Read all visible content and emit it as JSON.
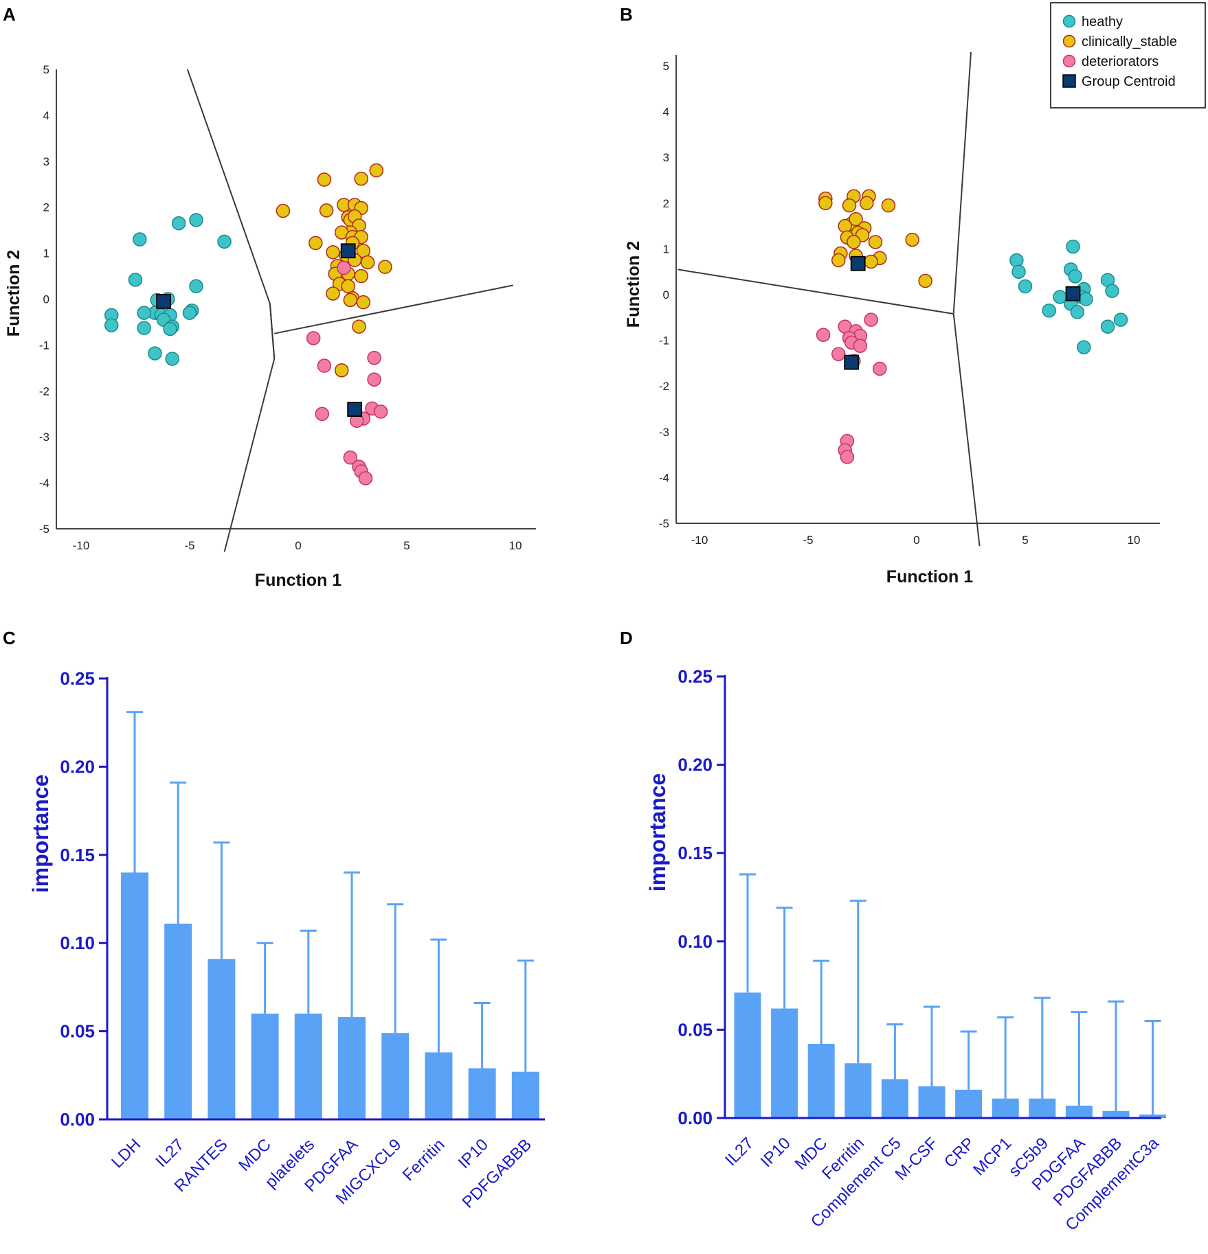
{
  "chart_data": [
    {
      "panel": "A",
      "type": "scatter",
      "xlabel": "Function 1",
      "ylabel": "Function 2",
      "xlim": [
        -11,
        11
      ],
      "ylim": [
        -5.5,
        5.3
      ],
      "xticks": [
        -10,
        -5,
        0,
        5,
        10
      ],
      "yticks": [
        5,
        4,
        3,
        2,
        1,
        0,
        -1,
        -2,
        -3,
        -4,
        -5
      ],
      "grid": false,
      "territory_lines": [
        {
          "points": [
            [
              -5.1,
              5.0
            ],
            [
              -1.3,
              -0.1
            ],
            [
              -1.1,
              -1.3
            ],
            [
              -3.4,
              -5.5
            ]
          ]
        },
        {
          "points": [
            [
              -1.3,
              -0.1
            ],
            [
              -1.1,
              -1.3
            ]
          ]
        },
        {
          "points": [
            [
              -1.1,
              -0.75
            ],
            [
              9.9,
              0.3
            ]
          ]
        }
      ],
      "series": [
        {
          "name": "heathy",
          "color": "#3ec4c8",
          "stroke": "#1a8a8e",
          "points": [
            [
              -5.5,
              1.65
            ],
            [
              -4.7,
              1.72
            ],
            [
              -3.4,
              1.25
            ],
            [
              -7.3,
              1.3
            ],
            [
              -7.5,
              0.42
            ],
            [
              -4.7,
              0.28
            ],
            [
              -6.5,
              -0.02
            ],
            [
              -6.0,
              0.0
            ],
            [
              -6.6,
              -0.3
            ],
            [
              -7.1,
              -0.3
            ],
            [
              -6.3,
              -0.35
            ],
            [
              -5.9,
              -0.35
            ],
            [
              -4.9,
              -0.25
            ],
            [
              -5.0,
              -0.3
            ],
            [
              -8.6,
              -0.35
            ],
            [
              -8.6,
              -0.57
            ],
            [
              -6.2,
              -0.45
            ],
            [
              -5.8,
              -0.6
            ],
            [
              -5.9,
              -0.65
            ],
            [
              -7.1,
              -0.63
            ],
            [
              -6.6,
              -1.18
            ],
            [
              -5.8,
              -1.3
            ]
          ]
        },
        {
          "name": "clinically_stable",
          "color": "#e6c40f",
          "stroke": "#b1261a",
          "points": [
            [
              1.2,
              2.6
            ],
            [
              2.9,
              2.62
            ],
            [
              3.6,
              2.8
            ],
            [
              -0.7,
              1.92
            ],
            [
              1.3,
              1.93
            ],
            [
              2.1,
              2.05
            ],
            [
              2.6,
              2.05
            ],
            [
              2.9,
              1.98
            ],
            [
              2.3,
              1.78
            ],
            [
              2.4,
              1.72
            ],
            [
              2.6,
              1.8
            ],
            [
              2.8,
              1.6
            ],
            [
              2.4,
              1.45
            ],
            [
              2.0,
              1.45
            ],
            [
              2.5,
              1.35
            ],
            [
              2.9,
              1.35
            ],
            [
              0.8,
              1.22
            ],
            [
              2.5,
              1.22
            ],
            [
              3.0,
              1.05
            ],
            [
              1.6,
              1.02
            ],
            [
              2.2,
              0.95
            ],
            [
              2.6,
              0.85
            ],
            [
              3.2,
              0.8
            ],
            [
              4.0,
              0.7
            ],
            [
              1.8,
              0.72
            ],
            [
              2.3,
              0.55
            ],
            [
              1.7,
              0.55
            ],
            [
              2.9,
              0.5
            ],
            [
              1.9,
              0.33
            ],
            [
              2.3,
              0.28
            ],
            [
              1.6,
              0.12
            ],
            [
              2.5,
              0.02
            ],
            [
              2.4,
              -0.02
            ],
            [
              3.0,
              -0.07
            ],
            [
              2.8,
              -0.6
            ],
            [
              2.0,
              -1.55
            ]
          ]
        },
        {
          "name": "deteriorators",
          "color": "#f27ca4",
          "stroke": "#c4326a",
          "points": [
            [
              2.1,
              0.68
            ],
            [
              0.7,
              -0.85
            ],
            [
              3.5,
              -1.28
            ],
            [
              1.2,
              -1.45
            ],
            [
              3.5,
              -1.75
            ],
            [
              1.1,
              -2.5
            ],
            [
              3.4,
              -2.38
            ],
            [
              3.8,
              -2.45
            ],
            [
              3.0,
              -2.6
            ],
            [
              2.7,
              -2.65
            ],
            [
              2.4,
              -3.45
            ],
            [
              2.8,
              -3.65
            ],
            [
              2.9,
              -3.75
            ],
            [
              3.1,
              -3.9
            ]
          ]
        },
        {
          "name": "Group Centroid",
          "color": "#0b3a6e",
          "stroke": "#000000",
          "points": [
            [
              -6.2,
              -0.05
            ],
            [
              2.3,
              1.05
            ],
            [
              2.6,
              -2.4
            ]
          ]
        }
      ]
    },
    {
      "panel": "B",
      "type": "scatter",
      "xlabel": "Function 1",
      "ylabel": "Function 2",
      "xlim": [
        -11,
        11
      ],
      "ylim": [
        -5.5,
        5.5
      ],
      "xticks": [
        -10,
        -5,
        0,
        5,
        10
      ],
      "yticks": [
        5,
        4,
        3,
        2,
        1,
        0,
        -1,
        -2,
        -3,
        -4,
        -5
      ],
      "grid": false,
      "territory_lines": [
        {
          "points": [
            [
              -11.0,
              0.55
            ],
            [
              1.7,
              -0.42
            ]
          ]
        },
        {
          "points": [
            [
              2.5,
              5.3
            ],
            [
              1.7,
              -0.42
            ],
            [
              2.9,
              -5.5
            ]
          ]
        }
      ],
      "legend": {
        "position": "top-right",
        "entries": [
          "heathy",
          "clinically_stable",
          "deteriorators",
          "Group Centroid"
        ]
      },
      "series": [
        {
          "name": "heathy",
          "color": "#3ec4c8",
          "stroke": "#1a8a8e",
          "points": [
            [
              7.2,
              1.05
            ],
            [
              4.6,
              0.75
            ],
            [
              4.7,
              0.5
            ],
            [
              7.1,
              0.55
            ],
            [
              7.3,
              0.4
            ],
            [
              5.0,
              0.18
            ],
            [
              8.8,
              0.32
            ],
            [
              7.7,
              0.12
            ],
            [
              9.0,
              0.08
            ],
            [
              6.6,
              -0.05
            ],
            [
              7.6,
              -0.05
            ],
            [
              7.8,
              -0.1
            ],
            [
              7.1,
              -0.2
            ],
            [
              6.1,
              -0.35
            ],
            [
              7.4,
              -0.38
            ],
            [
              9.4,
              -0.55
            ],
            [
              8.8,
              -0.7
            ],
            [
              7.7,
              -1.15
            ]
          ]
        },
        {
          "name": "clinically_stable",
          "color": "#e6c40f",
          "stroke": "#b1261a",
          "points": [
            [
              -4.2,
              2.1
            ],
            [
              -4.2,
              2.0
            ],
            [
              -2.9,
              2.15
            ],
            [
              -2.2,
              2.15
            ],
            [
              -2.3,
              2.0
            ],
            [
              -3.1,
              1.95
            ],
            [
              -1.3,
              1.95
            ],
            [
              -3.0,
              1.55
            ],
            [
              -2.8,
              1.65
            ],
            [
              -2.4,
              1.45
            ],
            [
              -3.3,
              1.5
            ],
            [
              -2.7,
              1.35
            ],
            [
              -2.5,
              1.3
            ],
            [
              -3.2,
              1.25
            ],
            [
              -1.9,
              1.15
            ],
            [
              -2.9,
              1.15
            ],
            [
              -0.2,
              1.2
            ],
            [
              -3.5,
              0.9
            ],
            [
              -2.8,
              0.85
            ],
            [
              -1.7,
              0.8
            ],
            [
              -3.6,
              0.75
            ],
            [
              -2.1,
              0.72
            ],
            [
              0.4,
              0.3
            ]
          ]
        },
        {
          "name": "deteriorators",
          "color": "#f27ca4",
          "stroke": "#c4326a",
          "points": [
            [
              -2.1,
              -0.55
            ],
            [
              -3.3,
              -0.7
            ],
            [
              -2.8,
              -0.8
            ],
            [
              -4.3,
              -0.88
            ],
            [
              -2.6,
              -0.9
            ],
            [
              -3.1,
              -0.95
            ],
            [
              -3.0,
              -1.05
            ],
            [
              -2.6,
              -1.12
            ],
            [
              -3.6,
              -1.3
            ],
            [
              -2.9,
              -1.45
            ],
            [
              -1.7,
              -1.62
            ],
            [
              -3.2,
              -3.2
            ],
            [
              -3.3,
              -3.4
            ],
            [
              -3.2,
              -3.55
            ]
          ]
        },
        {
          "name": "Group Centroid",
          "color": "#0b3a6e",
          "stroke": "#000000",
          "points": [
            [
              -2.7,
              0.68
            ],
            [
              -3.0,
              -1.48
            ],
            [
              7.2,
              0.02
            ]
          ]
        }
      ]
    },
    {
      "panel": "C",
      "type": "bar",
      "ylabel": "importance",
      "ylim": [
        0,
        0.25
      ],
      "yticks": [
        "0.00",
        "0.05",
        "0.10",
        "0.15",
        "0.20",
        "0.25"
      ],
      "categories": [
        "LDH",
        "IL27",
        "RANTES",
        "MDC",
        "platelets",
        "PDGFAA",
        "MIGCXCL9",
        "Ferritin",
        "IP10",
        "PDFGABBB"
      ],
      "values": [
        0.14,
        0.111,
        0.091,
        0.06,
        0.06,
        0.058,
        0.049,
        0.038,
        0.029,
        0.027
      ],
      "error_upper": [
        0.231,
        0.191,
        0.157,
        0.1,
        0.107,
        0.14,
        0.122,
        0.102,
        0.066,
        0.09
      ],
      "bar_color": "#5aa2f5",
      "axis_color": "#1a1ac8"
    },
    {
      "panel": "D",
      "type": "bar",
      "ylabel": "importance",
      "ylim": [
        0,
        0.25
      ],
      "yticks": [
        "0.00",
        "0.05",
        "0.10",
        "0.15",
        "0.20",
        "0.25"
      ],
      "categories": [
        "IL27",
        "IP10",
        "MDC",
        "Ferritin",
        "Complement C5",
        "M-CSF",
        "CRP",
        "MCP1",
        "sC5b9",
        "PDGFAA",
        "PDGFABBB",
        "ComplementC3a"
      ],
      "values": [
        0.071,
        0.062,
        0.042,
        0.031,
        0.022,
        0.018,
        0.016,
        0.011,
        0.011,
        0.007,
        0.004,
        0.002
      ],
      "error_upper": [
        0.138,
        0.119,
        0.089,
        0.123,
        0.053,
        0.063,
        0.049,
        0.057,
        0.068,
        0.06,
        0.066,
        0.055
      ],
      "bar_color": "#5aa2f5",
      "axis_color": "#1a1ac8"
    }
  ]
}
